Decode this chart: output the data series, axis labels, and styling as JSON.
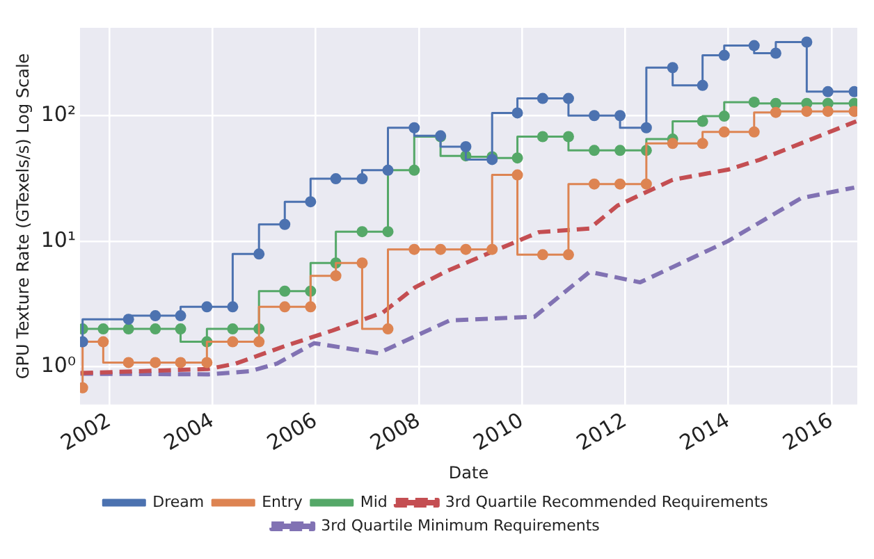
{
  "chart_data": {
    "type": "step",
    "xlabel": "Date",
    "ylabel": "GPU Texture Rate (GTexels/s) Log Scale",
    "log": "y",
    "grid": true,
    "legend": "bottom",
    "xlim": [
      2001.43,
      2016.5
    ],
    "xticks": [
      2002,
      2004,
      2006,
      2008,
      2010,
      2012,
      2014,
      2016
    ],
    "ylim": [
      0.5,
      500
    ],
    "yticks": [
      {
        "value": 1,
        "label": "10⁰"
      },
      {
        "value": 10,
        "label": "10¹"
      },
      {
        "value": 100,
        "label": "10²"
      }
    ],
    "series": [
      {
        "name": "Dream",
        "type": "step",
        "marker": "circle",
        "line_style": "solid",
        "color": "#4c72b0",
        "x": [
          2001.48,
          2002.37,
          2002.89,
          2003.38,
          2003.89,
          2004.39,
          2004.9,
          2005.4,
          2005.9,
          2006.39,
          2006.9,
          2007.4,
          2007.91,
          2008.42,
          2008.91,
          2009.42,
          2009.91,
          2010.4,
          2010.9,
          2011.4,
          2011.9,
          2012.41,
          2012.92,
          2013.5,
          2013.92,
          2014.5,
          2014.92,
          2015.52,
          2015.93,
          2016.44
        ],
        "values": [
          1.58,
          2.39,
          2.55,
          2.55,
          3.0,
          3.0,
          7.9,
          13.6,
          20.6,
          31.4,
          31.4,
          36.7,
          80,
          69,
          56.5,
          44.7,
          105,
          137,
          137,
          100,
          100,
          80,
          241,
          174,
          302,
          361,
          314,
          385,
          155,
          155
        ]
      },
      {
        "name": "Entry",
        "type": "step",
        "marker": "circle",
        "line_style": "solid",
        "color": "#dd8452",
        "x": [
          2001.48,
          2001.88,
          2002.37,
          2002.89,
          2003.38,
          2003.89,
          2004.39,
          2004.9,
          2005.4,
          2005.9,
          2006.39,
          2006.9,
          2007.4,
          2007.91,
          2008.42,
          2008.91,
          2009.42,
          2009.91,
          2010.4,
          2010.9,
          2011.4,
          2011.9,
          2012.41,
          2012.92,
          2013.5,
          2013.92,
          2014.5,
          2014.92,
          2015.52,
          2015.93,
          2016.44
        ],
        "values": [
          0.68,
          1.58,
          1.08,
          1.08,
          1.08,
          1.08,
          1.58,
          1.58,
          3.0,
          3.0,
          5.3,
          6.7,
          2.0,
          8.6,
          8.6,
          8.6,
          8.6,
          33.7,
          7.8,
          7.8,
          28.5,
          28.5,
          28.5,
          60,
          60,
          74,
          74,
          106,
          108,
          108,
          108
        ]
      },
      {
        "name": "Mid",
        "type": "step",
        "marker": "circle",
        "line_style": "solid",
        "color": "#55a868",
        "x": [
          2001.48,
          2001.88,
          2002.37,
          2002.89,
          2003.38,
          2003.89,
          2004.39,
          2004.9,
          2005.4,
          2005.9,
          2006.39,
          2006.9,
          2007.4,
          2007.91,
          2008.42,
          2008.91,
          2009.42,
          2009.91,
          2010.4,
          2010.9,
          2011.4,
          2011.9,
          2012.41,
          2012.92,
          2013.5,
          2013.92,
          2014.5,
          2014.92,
          2015.52,
          2015.93,
          2016.44
        ],
        "values": [
          2.0,
          2.0,
          2.0,
          2.0,
          2.0,
          1.58,
          2.0,
          2.0,
          4.0,
          4.0,
          6.7,
          11.9,
          11.9,
          36.7,
          68,
          47.8,
          47,
          46,
          68,
          68,
          52.8,
          52.8,
          52.8,
          65,
          90,
          99,
          128,
          125,
          125,
          125,
          125
        ]
      },
      {
        "name": "3rd Quartile Recommended Requirements",
        "type": "line",
        "marker": "none",
        "line_style": "dashed",
        "color": "#c44e52",
        "x": [
          2001.44,
          2003.92,
          2004.45,
          2005.42,
          2006.32,
          2007.3,
          2007.93,
          2008.55,
          2009.44,
          2010.33,
          2011.31,
          2011.85,
          2012.92,
          2013.99,
          2014.61,
          2016.48
        ],
        "values": [
          0.89,
          0.96,
          1.06,
          1.47,
          1.94,
          2.7,
          4.3,
          5.8,
          8.3,
          11.8,
          12.6,
          19.2,
          30.8,
          37.1,
          44.5,
          90
        ]
      },
      {
        "name": "3rd Quartile Minimum Requirements",
        "type": "line",
        "marker": "none",
        "line_style": "dashed",
        "color": "#8172b3",
        "x": [
          2001.44,
          2003.92,
          2004.72,
          2005.25,
          2005.97,
          2007.21,
          2008.6,
          2010.24,
          2011.31,
          2012.29,
          2013.99,
          2015.41,
          2016.44
        ],
        "values": [
          0.88,
          0.87,
          0.92,
          1.06,
          1.54,
          1.28,
          2.34,
          2.5,
          5.7,
          4.7,
          10,
          22,
          26.7
        ]
      }
    ]
  }
}
